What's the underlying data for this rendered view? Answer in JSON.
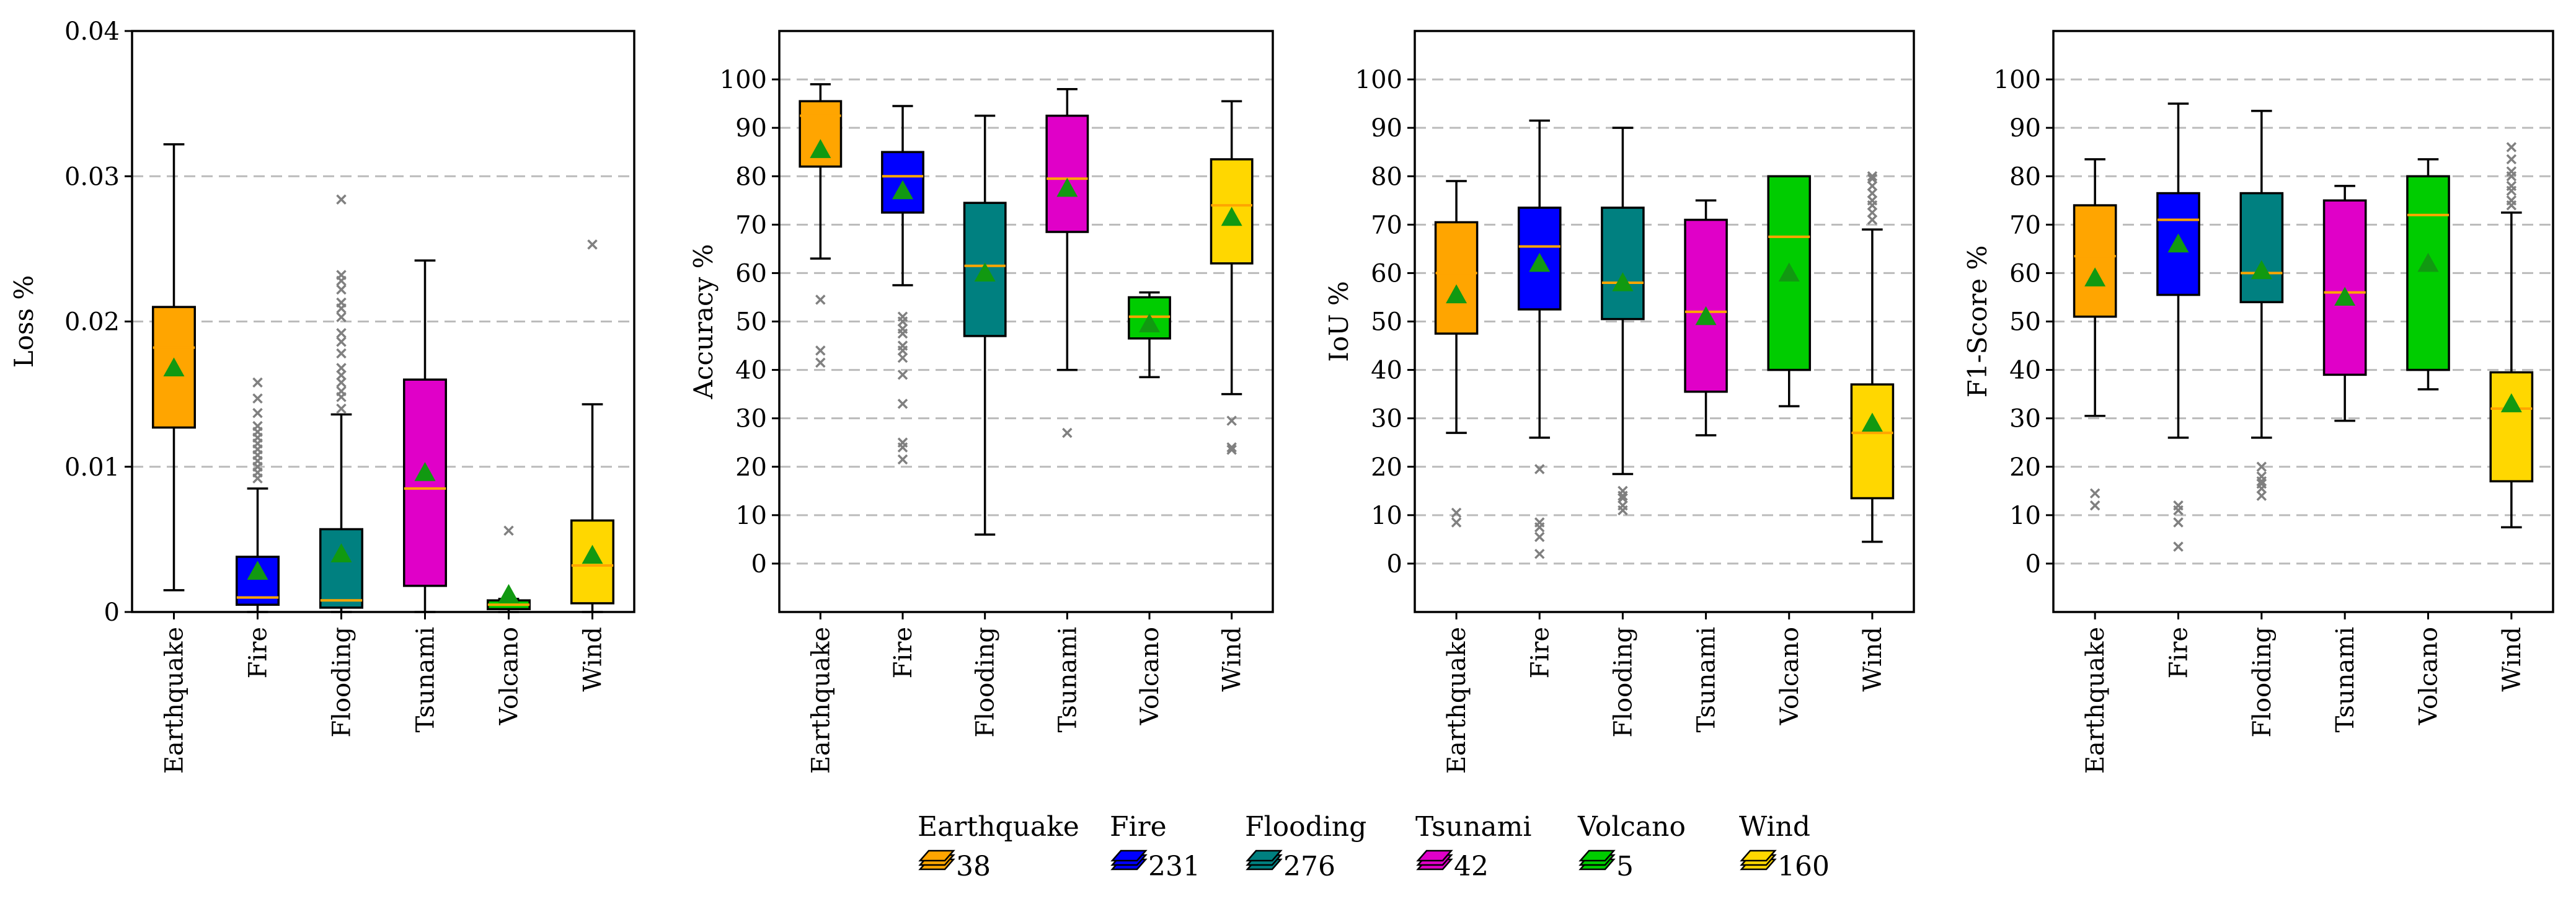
{
  "colors": {
    "Earthquake": "#FFA500",
    "Fire": "#0000FF",
    "Flooding": "#008080",
    "Tsunami": "#E000C8",
    "Volcano": "#00CC00",
    "Wind": "#FFD700",
    "median": "#FFA500",
    "mean_marker": "#119911",
    "outlier": "#808080",
    "grid": "#BBBBBB"
  },
  "legend": {
    "items": [
      {
        "name": "Earthquake",
        "count": "38"
      },
      {
        "name": "Fire",
        "count": "231"
      },
      {
        "name": "Flooding",
        "count": "276"
      },
      {
        "name": "Tsunami",
        "count": "42"
      },
      {
        "name": "Volcano",
        "count": "5"
      },
      {
        "name": "Wind",
        "count": "160"
      }
    ]
  },
  "chart_data": [
    {
      "type": "box",
      "title": "",
      "xlabel": "",
      "ylabel": "Loss %",
      "ylim": [
        0,
        0.04
      ],
      "yticks": [
        0,
        0.01,
        0.02,
        0.03,
        0.04
      ],
      "ytick_labels": [
        "0",
        "0.01",
        "0.02",
        "0.03",
        "0.04"
      ],
      "grid": true,
      "categories": [
        "Earthquake",
        "Fire",
        "Flooding",
        "Tsunami",
        "Volcano",
        "Wind"
      ],
      "boxes": [
        {
          "whislo": 0.0015,
          "q1": 0.0127,
          "med": 0.0182,
          "q3": 0.021,
          "whishi": 0.0322,
          "mean": 0.0168,
          "fliers": []
        },
        {
          "whislo": 0.0,
          "q1": 0.0005,
          "med": 0.001,
          "q3": 0.0038,
          "whishi": 0.0085,
          "mean": 0.0028,
          "fliers": [
            0.0092,
            0.0096,
            0.01,
            0.0104,
            0.0108,
            0.0112,
            0.0116,
            0.012,
            0.0124,
            0.0128,
            0.0137,
            0.0147,
            0.0158
          ]
        },
        {
          "whislo": 0.0,
          "q1": 0.0003,
          "med": 0.0008,
          "q3": 0.0057,
          "whishi": 0.0136,
          "mean": 0.004,
          "fliers": [
            0.014,
            0.0148,
            0.0152,
            0.0158,
            0.0163,
            0.0168,
            0.0178,
            0.0186,
            0.0192,
            0.0203,
            0.0209,
            0.0213,
            0.0222,
            0.0228,
            0.0232,
            0.0284
          ]
        },
        {
          "whislo": 0.0,
          "q1": 0.0018,
          "med": 0.0085,
          "q3": 0.016,
          "whishi": 0.0242,
          "mean": 0.0096,
          "fliers": []
        },
        {
          "whislo": 0.0,
          "q1": 0.0002,
          "med": 0.0005,
          "q3": 0.0008,
          "whishi": 0.0009,
          "mean": 0.0012,
          "fliers": [
            0.0056
          ]
        },
        {
          "whislo": 0.0,
          "q1": 0.0006,
          "med": 0.0032,
          "q3": 0.0063,
          "whishi": 0.0143,
          "mean": 0.0039,
          "fliers": [
            0.0253
          ]
        }
      ]
    },
    {
      "type": "box",
      "title": "",
      "xlabel": "",
      "ylabel": "Accuracy %",
      "ylim": [
        -10,
        110
      ],
      "yticks": [
        0,
        10,
        20,
        30,
        40,
        50,
        60,
        70,
        80,
        90,
        100
      ],
      "ytick_labels": [
        "0",
        "10",
        "20",
        "30",
        "40",
        "50",
        "60",
        "70",
        "80",
        "90",
        "100"
      ],
      "grid": true,
      "categories": [
        "Earthquake",
        "Fire",
        "Flooding",
        "Tsunami",
        "Volcano",
        "Wind"
      ],
      "boxes": [
        {
          "whislo": 63,
          "q1": 82,
          "med": 92.5,
          "q3": 95.5,
          "whishi": 99,
          "mean": 85.5,
          "fliers": [
            41.5,
            44,
            54.5
          ]
        },
        {
          "whislo": 57.5,
          "q1": 72.5,
          "med": 80,
          "q3": 85,
          "whishi": 94.5,
          "mean": 77,
          "fliers": [
            21.5,
            24,
            25,
            33,
            39,
            42.5,
            44,
            45,
            47.5,
            48.5,
            50,
            51
          ]
        },
        {
          "whislo": 6,
          "q1": 47,
          "med": 61.5,
          "q3": 74.5,
          "whishi": 92.5,
          "mean": 60,
          "fliers": []
        },
        {
          "whislo": 40,
          "q1": 68.5,
          "med": 79.5,
          "q3": 92.5,
          "whishi": 98,
          "mean": 77.5,
          "fliers": [
            27
          ]
        },
        {
          "whislo": 38.5,
          "q1": 46.5,
          "med": 51,
          "q3": 55,
          "whishi": 56,
          "mean": 49.5,
          "fliers": []
        },
        {
          "whislo": 35,
          "q1": 62,
          "med": 74,
          "q3": 83.5,
          "whishi": 95.5,
          "mean": 71.5,
          "fliers": [
            23.5,
            24,
            29.5
          ]
        }
      ]
    },
    {
      "type": "box",
      "title": "",
      "xlabel": "",
      "ylabel": "IoU %",
      "ylim": [
        -10,
        110
      ],
      "yticks": [
        0,
        10,
        20,
        30,
        40,
        50,
        60,
        70,
        80,
        90,
        100
      ],
      "ytick_labels": [
        "0",
        "10",
        "20",
        "30",
        "40",
        "50",
        "60",
        "70",
        "80",
        "90",
        "100"
      ],
      "grid": true,
      "categories": [
        "Earthquake",
        "Fire",
        "Flooding",
        "Tsunami",
        "Volcano",
        "Wind"
      ],
      "boxes": [
        {
          "whislo": 27,
          "q1": 47.5,
          "med": 60,
          "q3": 70.5,
          "whishi": 79,
          "mean": 55.5,
          "fliers": [
            8.5,
            10.5
          ]
        },
        {
          "whislo": 26,
          "q1": 52.5,
          "med": 65.5,
          "q3": 73.5,
          "whishi": 91.5,
          "mean": 62,
          "fliers": [
            2,
            5.5,
            7.5,
            8.5,
            19.5
          ]
        },
        {
          "whislo": 18.5,
          "q1": 50.5,
          "med": 58,
          "q3": 73.5,
          "whishi": 90,
          "mean": 58,
          "fliers": [
            11,
            12,
            13.5,
            14,
            15
          ]
        },
        {
          "whislo": 26.5,
          "q1": 35.5,
          "med": 52,
          "q3": 71,
          "whishi": 75,
          "mean": 51,
          "fliers": []
        },
        {
          "whislo": 32.5,
          "q1": 40,
          "med": 67.5,
          "q3": 80,
          "whishi": 80,
          "mean": 60,
          "fliers": []
        },
        {
          "whislo": 4.5,
          "q1": 13.5,
          "med": 27,
          "q3": 37,
          "whishi": 69,
          "mean": 29,
          "fliers": [
            71,
            72.5,
            74,
            75,
            76.5,
            78,
            79.5,
            80
          ]
        }
      ]
    },
    {
      "type": "box",
      "title": "",
      "xlabel": "",
      "ylabel": "F1-Score %",
      "ylim": [
        -10,
        110
      ],
      "yticks": [
        0,
        10,
        20,
        30,
        40,
        50,
        60,
        70,
        80,
        90,
        100
      ],
      "ytick_labels": [
        "0",
        "10",
        "20",
        "30",
        "40",
        "50",
        "60",
        "70",
        "80",
        "90",
        "100"
      ],
      "grid": true,
      "categories": [
        "Earthquake",
        "Fire",
        "Flooding",
        "Tsunami",
        "Volcano",
        "Wind"
      ],
      "boxes": [
        {
          "whislo": 30.5,
          "q1": 51,
          "med": 63.5,
          "q3": 74,
          "whishi": 83.5,
          "mean": 59,
          "fliers": [
            12,
            14.5
          ]
        },
        {
          "whislo": 26,
          "q1": 55.5,
          "med": 71,
          "q3": 76.5,
          "whishi": 95,
          "mean": 66,
          "fliers": [
            3.5,
            8.5,
            11,
            12
          ]
        },
        {
          "whislo": 26,
          "q1": 54,
          "med": 60,
          "q3": 76.5,
          "whishi": 93.5,
          "mean": 60.5,
          "fliers": [
            14,
            15.5,
            16.5,
            17,
            18,
            20
          ]
        },
        {
          "whislo": 29.5,
          "q1": 39,
          "med": 56,
          "q3": 75,
          "whishi": 78,
          "mean": 55,
          "fliers": []
        },
        {
          "whislo": 36,
          "q1": 40,
          "med": 72,
          "q3": 80,
          "whishi": 83.5,
          "mean": 62,
          "fliers": []
        },
        {
          "whislo": 7.5,
          "q1": 17,
          "med": 32,
          "q3": 39.5,
          "whishi": 72.5,
          "mean": 33,
          "fliers": [
            74,
            75,
            77,
            78,
            80,
            81,
            83.5,
            86
          ]
        }
      ]
    }
  ]
}
